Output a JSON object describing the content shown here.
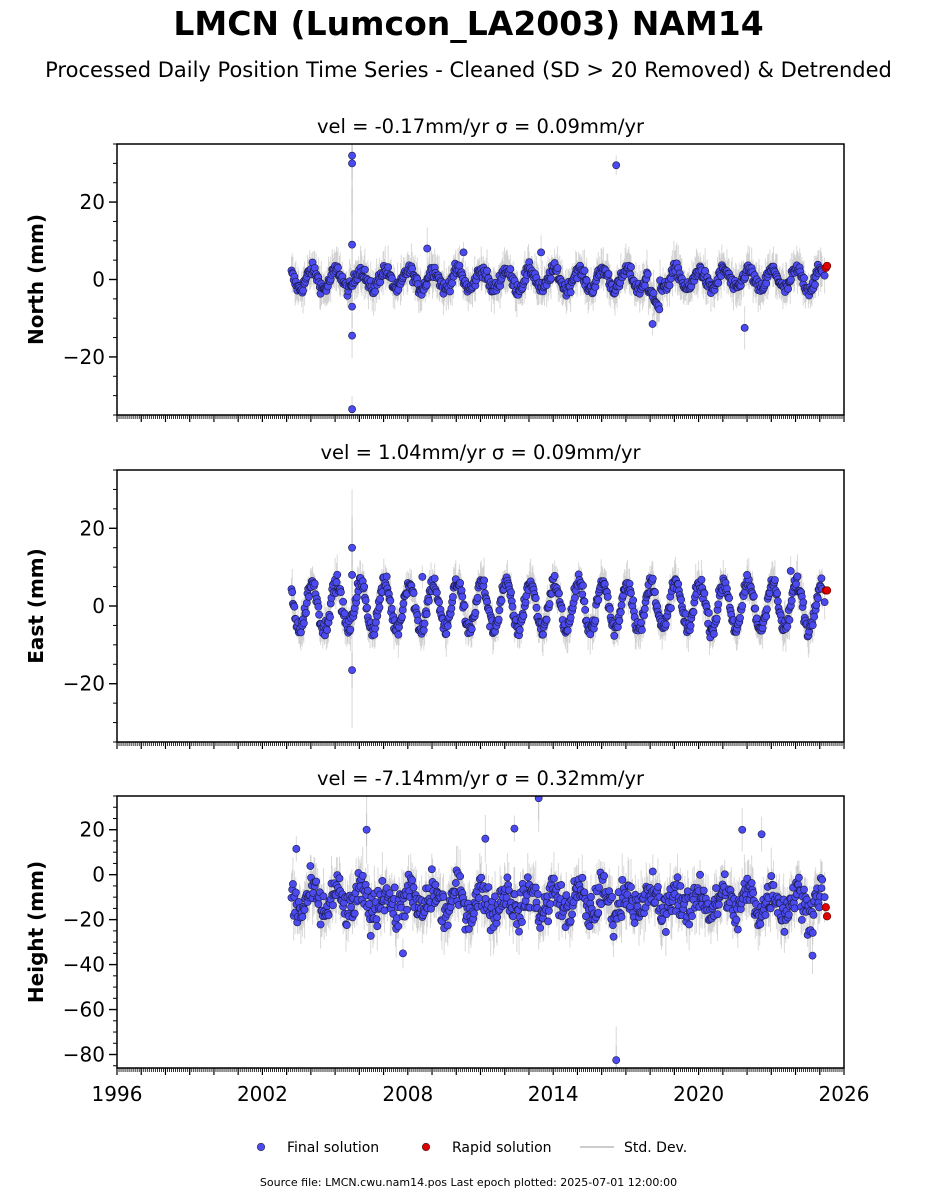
{
  "figure": {
    "title": "LMCN (Lumcon_LA2003) NAM14",
    "subtitle": "Processed Daily Position Time Series - Cleaned (SD > 20 Removed) & Detrended",
    "footer": "Source file: LMCN.cwu.nam14.pos  Last epoch plotted: 2025-07-01 12:00:00",
    "legend": {
      "placement": "bottom-center",
      "items": [
        {
          "label": "Final solution",
          "color": "#4a4af0",
          "marker": "circle"
        },
        {
          "label": "Rapid solution",
          "color": "#e00000",
          "marker": "circle"
        },
        {
          "label": "Std. Dev.",
          "color": "#cccccc",
          "marker": "line"
        }
      ]
    }
  },
  "chart_data": [
    {
      "type": "scatter",
      "title": "vel = -0.17mm/yr   σ = 0.09mm/yr",
      "ylabel": "North (mm)",
      "xlabel": "",
      "xlim": [
        1996,
        2026
      ],
      "ylim": [
        -35,
        35
      ],
      "yticks": [
        -20,
        0,
        20
      ],
      "ytick_labels": [
        "−20",
        "0",
        "20"
      ],
      "xticks": [
        1996,
        2002,
        2008,
        2014,
        2020,
        2026
      ],
      "xtick_labels": [],
      "series": [
        {
          "name": "Final solution",
          "color": "#4a4af0",
          "coverage": [
            2003.2,
            2025.1
          ],
          "annual_amplitude": 2.5,
          "scatter": 1.2,
          "outliers": [
            [
              2005.7,
              32.0
            ],
            [
              2005.7,
              30.0
            ],
            [
              2005.7,
              9.0
            ],
            [
              2005.7,
              -7.0
            ],
            [
              2005.7,
              -14.5
            ],
            [
              2005.7,
              -33.5
            ],
            [
              2016.6,
              29.5
            ],
            [
              2021.9,
              -12.5
            ],
            [
              2008.8,
              8.0
            ],
            [
              2010.3,
              7.0
            ],
            [
              2013.5,
              7.0
            ],
            [
              2018.1,
              -11.5
            ],
            [
              2025.2,
              1.0
            ]
          ]
        },
        {
          "name": "Rapid solution",
          "color": "#e00000",
          "points": [
            [
              2025.25,
              3.0
            ],
            [
              2025.3,
              3.5
            ]
          ]
        }
      ]
    },
    {
      "type": "scatter",
      "title": "vel = 1.04mm/yr   σ = 0.09mm/yr",
      "ylabel": "East (mm)",
      "xlabel": "",
      "xlim": [
        1996,
        2026
      ],
      "ylim": [
        -35,
        35
      ],
      "yticks": [
        -20,
        0,
        20
      ],
      "ytick_labels": [
        "−20",
        "0",
        "20"
      ],
      "xticks": [
        1996,
        2002,
        2008,
        2014,
        2020,
        2026
      ],
      "xtick_labels": [],
      "series": [
        {
          "name": "Final solution",
          "color": "#4a4af0",
          "coverage": [
            2003.2,
            2025.1
          ],
          "annual_amplitude": 6.0,
          "scatter": 1.5,
          "outliers": [
            [
              2005.7,
              15.0
            ],
            [
              2005.7,
              8.0
            ],
            [
              2005.7,
              -16.5
            ],
            [
              2008.6,
              7.5
            ],
            [
              2023.8,
              9.0
            ],
            [
              2022.0,
              8.0
            ],
            [
              2025.2,
              1.0
            ]
          ]
        },
        {
          "name": "Rapid solution",
          "color": "#e00000",
          "points": [
            [
              2025.25,
              4.0
            ],
            [
              2025.3,
              4.0
            ]
          ]
        }
      ]
    },
    {
      "type": "scatter",
      "title": "vel = -7.14mm/yr   σ = 0.32mm/yr",
      "ylabel": "Height (mm)",
      "xlabel": "",
      "xlim": [
        1996,
        2026
      ],
      "ylim": [
        -86,
        35
      ],
      "yticks": [
        -80,
        -60,
        -40,
        -20,
        0,
        20
      ],
      "ytick_labels": [
        "−80",
        "−60",
        "−40",
        "−20",
        "0",
        "20"
      ],
      "xticks": [
        1996,
        2002,
        2008,
        2014,
        2020,
        2026
      ],
      "xtick_labels": [
        "1996",
        "2002",
        "2008",
        "2014",
        "2020",
        "2026"
      ],
      "series": [
        {
          "name": "Final solution",
          "color": "#4a4af0",
          "coverage": [
            2003.2,
            2025.1
          ],
          "center": -12,
          "annual_amplitude": 5.0,
          "scatter": 6.0,
          "outliers": [
            [
              2013.4,
              34.0
            ],
            [
              2016.6,
              -82.5
            ],
            [
              2006.3,
              20.0
            ],
            [
              2012.4,
              20.5
            ],
            [
              2021.8,
              20.0
            ],
            [
              2022.6,
              18.0
            ],
            [
              2011.2,
              16.0
            ],
            [
              2007.8,
              -35.0
            ],
            [
              2003.4,
              11.5
            ],
            [
              2024.7,
              -36.0
            ],
            [
              2025.2,
              -10.0
            ]
          ]
        },
        {
          "name": "Rapid solution",
          "color": "#e00000",
          "points": [
            [
              2025.25,
              -14.5
            ],
            [
              2025.3,
              -18.5
            ]
          ]
        }
      ]
    }
  ]
}
